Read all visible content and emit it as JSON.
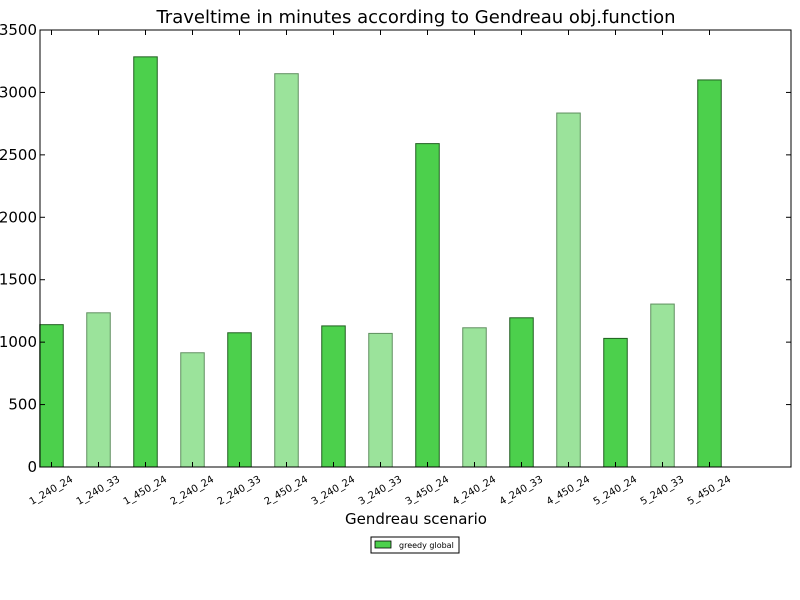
{
  "chart_data": {
    "type": "bar",
    "title": "Traveltime in minutes according to Gendreau obj.function",
    "xlabel": "Gendreau scenario",
    "ylabel": "",
    "ylim": [
      0,
      3500
    ],
    "yticks": [
      0,
      500,
      1000,
      1500,
      2000,
      2500,
      3000,
      3500
    ],
    "ytick_labels": [
      "0",
      "500",
      "1000",
      "1500",
      "2000",
      "2500",
      "3000",
      "3500"
    ],
    "categories": [
      "1_240_24",
      "1_240_33",
      "1_450_24",
      "2_240_24",
      "2_240_33",
      "2_450_24",
      "3_240_24",
      "3_240_33",
      "3_450_24",
      "4_240_24",
      "4_240_33",
      "4_450_24",
      "5_240_24",
      "5_240_33",
      "5_450_24"
    ],
    "series": [
      {
        "name": "greedy global",
        "values": [
          1140,
          1235,
          3285,
          915,
          1075,
          3150,
          1130,
          1070,
          2590,
          1115,
          1195,
          2835,
          1030,
          1305,
          3100
        ]
      }
    ],
    "grid": false,
    "legend": "bottom-center",
    "colors": {
      "dark_bar": "#4cd04c",
      "light_bar": "#9be39b",
      "dark_edge": "#1f5f1f",
      "light_edge": "#5f8f5f"
    }
  }
}
